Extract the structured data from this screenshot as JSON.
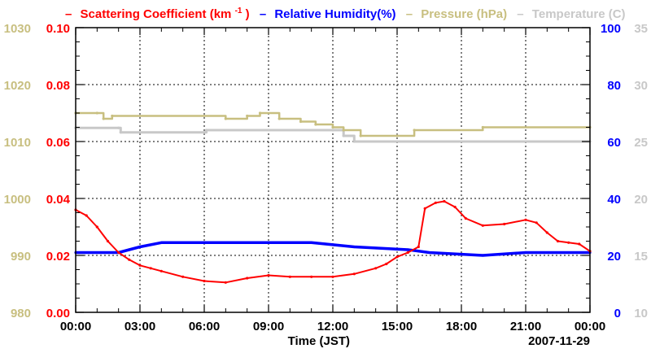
{
  "chart_data": {
    "type": "line",
    "date_label": "2007-11-29",
    "xlabel": "Time (JST)",
    "x_ticks": [
      "00:00",
      "03:00",
      "06:00",
      "09:00",
      "12:00",
      "15:00",
      "18:00",
      "21:00",
      "00:00"
    ],
    "x_range_hours": [
      0,
      24
    ],
    "grid": true,
    "legend": {
      "prefix": "–",
      "scattering_text": "Scattering Coefficient (km",
      "scattering_sup": "-1",
      "scattering_close": ")",
      "humidity": "Relative Humidity(%)",
      "pressure": "Pressure (hPa)",
      "temperature": "Temperature (C)"
    },
    "colors": {
      "scattering": "#ff0000",
      "humidity": "#0000ff",
      "pressure": "#c8bf80",
      "temperature": "#c8c8c8",
      "axis": "#000000"
    },
    "axes": {
      "pressure": {
        "range": [
          980,
          1030
        ],
        "ticks": [
          "980",
          "990",
          "1000",
          "1010",
          "1020",
          "1030"
        ]
      },
      "scattering": {
        "range": [
          0,
          0.1
        ],
        "ticks": [
          "0.00",
          "0.02",
          "0.04",
          "0.06",
          "0.08",
          "0.10"
        ]
      },
      "humidity": {
        "range": [
          0,
          100
        ],
        "ticks": [
          "0",
          "20",
          "40",
          "60",
          "80",
          "100"
        ]
      },
      "temperature": {
        "range": [
          10,
          35
        ],
        "ticks": [
          "10",
          "15",
          "20",
          "25",
          "30",
          "35"
        ]
      }
    },
    "series": [
      {
        "name": "Scattering Coefficient",
        "unit": "km^-1",
        "axis": "scattering",
        "x": [
          0,
          0.5,
          1,
          1.5,
          2,
          2.5,
          3,
          3.5,
          4,
          5,
          6,
          7,
          8,
          9,
          10,
          11,
          12,
          13,
          14,
          14.5,
          15,
          15.5,
          16,
          16.3,
          16.8,
          17.2,
          17.7,
          18.2,
          19,
          20,
          21,
          21.5,
          22,
          22.5,
          23,
          23.5,
          24
        ],
        "values": [
          0.036,
          0.034,
          0.03,
          0.025,
          0.021,
          0.0185,
          0.0165,
          0.0155,
          0.0145,
          0.0125,
          0.011,
          0.0105,
          0.012,
          0.013,
          0.0125,
          0.0125,
          0.0125,
          0.0135,
          0.0155,
          0.017,
          0.0195,
          0.021,
          0.023,
          0.0365,
          0.0385,
          0.039,
          0.037,
          0.033,
          0.0305,
          0.031,
          0.0325,
          0.0315,
          0.028,
          0.025,
          0.0245,
          0.024,
          0.0215
        ]
      },
      {
        "name": "Relative Humidity",
        "unit": "%",
        "axis": "humidity",
        "x": [
          0,
          2.0,
          2.5,
          3.0,
          4.0,
          11.0,
          13.0,
          15.5,
          16.5,
          19.0,
          21.0,
          24.0
        ],
        "values": [
          21,
          21,
          22,
          23,
          24.5,
          24.5,
          23,
          22,
          21,
          20,
          21,
          21
        ]
      },
      {
        "name": "Pressure",
        "unit": "hPa",
        "axis": "pressure",
        "x": [
          0,
          1.0,
          1.3,
          1.7,
          7.0,
          8.0,
          8.6,
          9.5,
          10.5,
          11.2,
          12.0,
          12.5,
          13.3,
          15.0,
          15.8,
          19.0,
          24.0
        ],
        "values": [
          1015,
          1015,
          1014,
          1014.5,
          1014,
          1014.5,
          1015,
          1014,
          1013.5,
          1013,
          1012.5,
          1012,
          1011,
          1011,
          1012,
          1012.5,
          1012.5
        ]
      },
      {
        "name": "Temperature",
        "unit": "C",
        "axis": "temperature",
        "x": [
          0,
          2.0,
          2.1,
          6.0,
          6.1,
          12.0,
          12.5,
          13.0,
          24.0
        ],
        "values": [
          26.2,
          26.2,
          25.8,
          25.8,
          26.0,
          26.0,
          25.5,
          25.0,
          25.0
        ]
      }
    ]
  }
}
